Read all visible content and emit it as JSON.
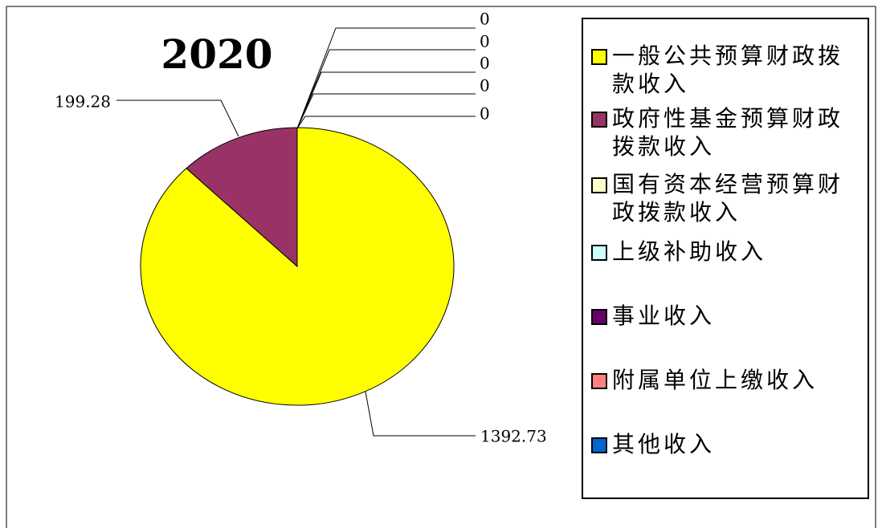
{
  "chart_data": {
    "type": "pie",
    "title": "2020",
    "categories": [
      "一般公共预算财政拨款收入",
      "政府性基金预算财政拨款收入",
      "国有资本经营预算财政拨款收入",
      "上级补助收入",
      "事业收入",
      "附属单位上缴收入",
      "其他收入"
    ],
    "values": [
      1392.73,
      199.28,
      0,
      0,
      0,
      0,
      0
    ],
    "colors": [
      "#ffff00",
      "#993366",
      "#ffffcc",
      "#ccffff",
      "#660066",
      "#ff8080",
      "#0066cc"
    ],
    "legend": "right"
  }
}
